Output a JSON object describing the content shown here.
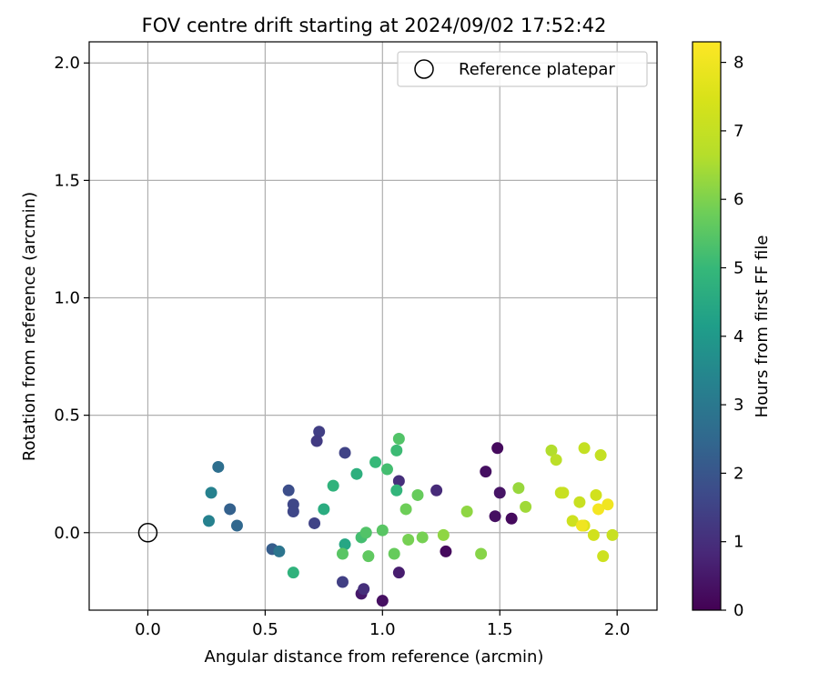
{
  "chart_data": {
    "type": "scatter",
    "title": "FOV centre drift starting at 2024/09/02 17:52:42",
    "xlabel": "Angular distance from reference (arcmin)",
    "ylabel": "Rotation from reference (arcmin)",
    "xlim": [
      -0.25,
      2.17
    ],
    "ylim": [
      -0.33,
      2.09
    ],
    "xticks": [
      0.0,
      0.5,
      1.0,
      1.5,
      2.0
    ],
    "xtick_labels": [
      "0.0",
      "0.5",
      "1.0",
      "1.5",
      "2.0"
    ],
    "yticks": [
      0.0,
      0.5,
      1.0,
      1.5,
      2.0
    ],
    "ytick_labels": [
      "0.0",
      "0.5",
      "1.0",
      "1.5",
      "2.0"
    ],
    "grid": true,
    "legend": {
      "placement": "top-right",
      "entries": [
        "Reference platepar"
      ]
    },
    "reference_point": {
      "name": "Reference platepar",
      "x": 0.0,
      "y": 0.0
    },
    "colorbar": {
      "label": "Hours from first FF file",
      "colormap": "viridis",
      "range": [
        0,
        8.3
      ],
      "ticks": [
        0,
        1,
        2,
        3,
        4,
        5,
        6,
        7,
        8
      ],
      "tick_labels": [
        "0",
        "1",
        "2",
        "3",
        "4",
        "5",
        "6",
        "7",
        "8"
      ]
    },
    "points": [
      {
        "x": 1.0,
        "y": -0.29,
        "c": 0.3
      },
      {
        "x": 0.91,
        "y": -0.26,
        "c": 0.5
      },
      {
        "x": 1.07,
        "y": -0.17,
        "c": 0.6
      },
      {
        "x": 0.92,
        "y": -0.24,
        "c": 1.0
      },
      {
        "x": 0.83,
        "y": -0.21,
        "c": 1.4
      },
      {
        "x": 1.27,
        "y": -0.08,
        "c": 0.2
      },
      {
        "x": 1.49,
        "y": 0.36,
        "c": 0.2
      },
      {
        "x": 1.44,
        "y": 0.26,
        "c": 0.3
      },
      {
        "x": 1.5,
        "y": 0.17,
        "c": 0.4
      },
      {
        "x": 1.48,
        "y": 0.07,
        "c": 0.3
      },
      {
        "x": 1.55,
        "y": 0.06,
        "c": 0.2
      },
      {
        "x": 1.23,
        "y": 0.18,
        "c": 0.9
      },
      {
        "x": 1.07,
        "y": 0.22,
        "c": 1.0
      },
      {
        "x": 0.73,
        "y": 0.43,
        "c": 1.4
      },
      {
        "x": 0.72,
        "y": 0.39,
        "c": 1.3
      },
      {
        "x": 0.84,
        "y": 0.34,
        "c": 1.5
      },
      {
        "x": 0.6,
        "y": 0.18,
        "c": 1.8
      },
      {
        "x": 0.62,
        "y": 0.12,
        "c": 1.6
      },
      {
        "x": 0.62,
        "y": 0.09,
        "c": 1.6
      },
      {
        "x": 0.71,
        "y": 0.04,
        "c": 1.5
      },
      {
        "x": 0.53,
        "y": -0.07,
        "c": 2.2
      },
      {
        "x": 0.56,
        "y": -0.08,
        "c": 2.9
      },
      {
        "x": 0.35,
        "y": 0.1,
        "c": 2.3
      },
      {
        "x": 0.38,
        "y": 0.03,
        "c": 2.5
      },
      {
        "x": 0.3,
        "y": 0.28,
        "c": 2.7
      },
      {
        "x": 0.27,
        "y": 0.17,
        "c": 3.3
      },
      {
        "x": 0.26,
        "y": 0.05,
        "c": 3.3
      },
      {
        "x": 0.62,
        "y": -0.17,
        "c": 4.8
      },
      {
        "x": 0.84,
        "y": -0.05,
        "c": 4.4
      },
      {
        "x": 0.75,
        "y": 0.1,
        "c": 4.6
      },
      {
        "x": 0.79,
        "y": 0.2,
        "c": 4.8
      },
      {
        "x": 0.89,
        "y": 0.25,
        "c": 4.7
      },
      {
        "x": 0.97,
        "y": 0.3,
        "c": 5.0
      },
      {
        "x": 1.02,
        "y": 0.27,
        "c": 5.2
      },
      {
        "x": 1.06,
        "y": 0.35,
        "c": 5.1
      },
      {
        "x": 1.07,
        "y": 0.4,
        "c": 5.4
      },
      {
        "x": 1.06,
        "y": 0.18,
        "c": 4.9
      },
      {
        "x": 0.91,
        "y": -0.02,
        "c": 5.2
      },
      {
        "x": 0.93,
        "y": 0.0,
        "c": 5.4
      },
      {
        "x": 0.83,
        "y": -0.09,
        "c": 5.5
      },
      {
        "x": 0.94,
        "y": -0.1,
        "c": 5.6
      },
      {
        "x": 1.0,
        "y": 0.01,
        "c": 5.5
      },
      {
        "x": 1.05,
        "y": -0.09,
        "c": 5.7
      },
      {
        "x": 1.1,
        "y": 0.1,
        "c": 5.8
      },
      {
        "x": 1.15,
        "y": 0.16,
        "c": 5.7
      },
      {
        "x": 1.11,
        "y": -0.03,
        "c": 5.9
      },
      {
        "x": 1.17,
        "y": -0.02,
        "c": 5.9
      },
      {
        "x": 1.26,
        "y": -0.01,
        "c": 6.2
      },
      {
        "x": 1.36,
        "y": 0.09,
        "c": 6.2
      },
      {
        "x": 1.42,
        "y": -0.09,
        "c": 6.1
      },
      {
        "x": 1.58,
        "y": 0.19,
        "c": 6.3
      },
      {
        "x": 1.61,
        "y": 0.11,
        "c": 6.4
      },
      {
        "x": 1.72,
        "y": 0.35,
        "c": 6.6
      },
      {
        "x": 1.74,
        "y": 0.31,
        "c": 6.8
      },
      {
        "x": 1.76,
        "y": 0.17,
        "c": 7.0
      },
      {
        "x": 1.77,
        "y": 0.17,
        "c": 7.1
      },
      {
        "x": 1.81,
        "y": 0.05,
        "c": 7.2
      },
      {
        "x": 1.84,
        "y": 0.13,
        "c": 7.1
      },
      {
        "x": 1.86,
        "y": 0.36,
        "c": 7.0
      },
      {
        "x": 1.86,
        "y": 0.03,
        "c": 7.6
      },
      {
        "x": 1.85,
        "y": 0.03,
        "c": 8.0
      },
      {
        "x": 1.9,
        "y": -0.01,
        "c": 7.3
      },
      {
        "x": 1.91,
        "y": 0.16,
        "c": 7.3
      },
      {
        "x": 1.93,
        "y": 0.33,
        "c": 7.0
      },
      {
        "x": 1.94,
        "y": -0.1,
        "c": 7.2
      },
      {
        "x": 1.92,
        "y": 0.1,
        "c": 8.1
      },
      {
        "x": 1.96,
        "y": 0.12,
        "c": 8.0
      },
      {
        "x": 1.98,
        "y": -0.01,
        "c": 7.1
      }
    ]
  }
}
